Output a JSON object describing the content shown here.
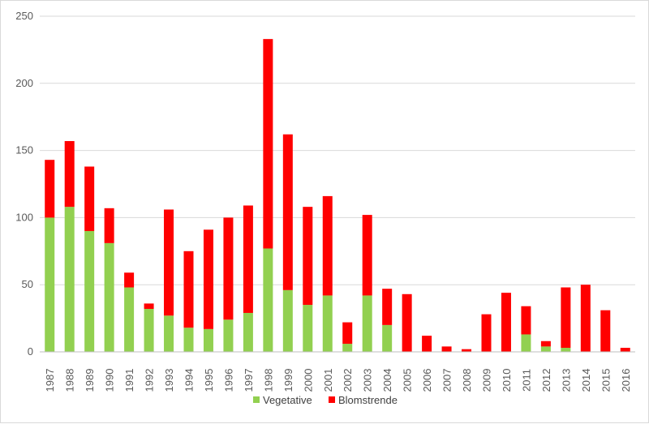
{
  "chart_data": {
    "type": "bar",
    "stacked": true,
    "categories": [
      "1987",
      "1988",
      "1989",
      "1990",
      "1991",
      "1992",
      "1993",
      "1994",
      "1995",
      "1996",
      "1997",
      "1998",
      "1999",
      "2000",
      "2001",
      "2002",
      "2003",
      "2004",
      "2005",
      "2006",
      "2007",
      "2008",
      "2009",
      "2010",
      "2011",
      "2012",
      "2013",
      "2014",
      "2015",
      "2016"
    ],
    "series": [
      {
        "name": "Vegetative",
        "color": "#92d050",
        "values": [
          100,
          108,
          90,
          81,
          48,
          32,
          27,
          18,
          17,
          24,
          29,
          77,
          46,
          35,
          42,
          6,
          42,
          20,
          0,
          0,
          0,
          0,
          0,
          0,
          13,
          4,
          3,
          0,
          0,
          0
        ]
      },
      {
        "name": "Blomstrende",
        "color": "#ff0000",
        "values": [
          43,
          49,
          48,
          26,
          11,
          4,
          79,
          57,
          74,
          76,
          80,
          156,
          116,
          73,
          74,
          16,
          60,
          27,
          43,
          12,
          4,
          2,
          28,
          44,
          21,
          4,
          45,
          50,
          31,
          3
        ]
      }
    ],
    "ylim": [
      0,
      250
    ],
    "yticks": [
      "0",
      "50",
      "100",
      "150",
      "200",
      "250"
    ],
    "grid": true,
    "legend_position": "bottom"
  }
}
